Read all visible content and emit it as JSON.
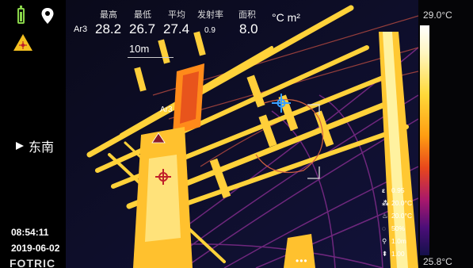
{
  "sidebar": {
    "direction": "东南",
    "time": "08:54:11",
    "date": "2019-06-02",
    "brand": "FOTRIC"
  },
  "measurement": {
    "area_tag": "Ar3",
    "labels": {
      "max": "最高",
      "min": "最低",
      "avg": "平均",
      "emissivity": "发射率",
      "area": "面积"
    },
    "values": {
      "max": "28.2",
      "min": "26.7",
      "avg": "27.4",
      "emissivity": "0.9",
      "area": "8.0"
    },
    "units": "°C m²",
    "distance": "10m"
  },
  "palette": {
    "max": "29.0°C",
    "min": "25.8°C"
  },
  "parameters": [
    {
      "icon": "emissivity-icon",
      "glyph": "ε",
      "value": "0.95"
    },
    {
      "icon": "reflected-temp-icon",
      "glyph": "⁂",
      "value": "20.0°C"
    },
    {
      "icon": "ambient-temp-icon",
      "glyph": "♨",
      "value": "20.0°C"
    },
    {
      "icon": "humidity-icon",
      "glyph": "◌",
      "value": "50%"
    },
    {
      "icon": "distance-icon",
      "glyph": "⚲",
      "value": "1.0m"
    },
    {
      "icon": "transmission-icon",
      "glyph": "⇞",
      "value": "1.00"
    }
  ],
  "overlay": {
    "area_label": "Ar3",
    "more": "•••"
  },
  "colors": {
    "accent": "#ffd93a",
    "hot": "#ff9d12",
    "cold": "#14104a",
    "marker_red": "#c0202a",
    "marker_blue": "#3aa0ff"
  }
}
